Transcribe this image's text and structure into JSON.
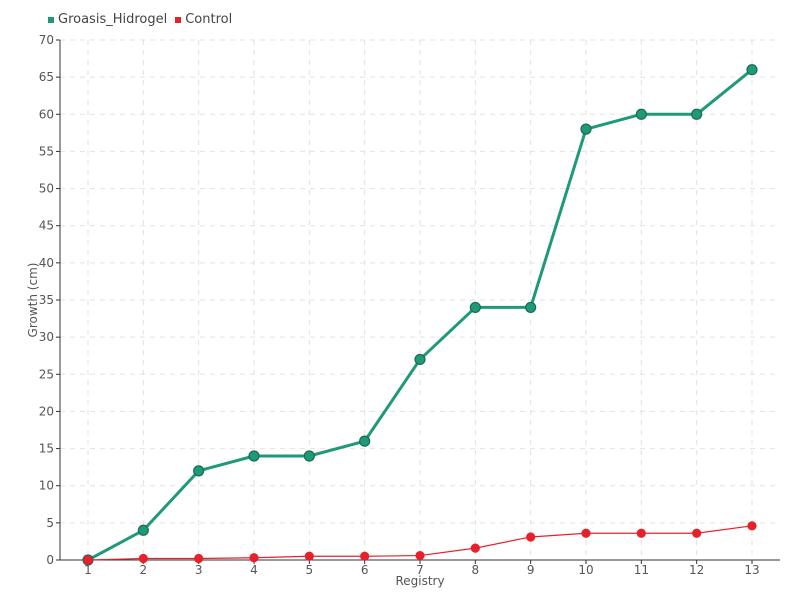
{
  "chart_data": {
    "type": "line",
    "title": "",
    "xlabel": "Registry",
    "ylabel": "Growth (cm)",
    "x": [
      1,
      2,
      3,
      4,
      5,
      6,
      7,
      8,
      9,
      10,
      11,
      12,
      13
    ],
    "xlim": [
      1,
      13
    ],
    "ylim": [
      0,
      70
    ],
    "yticks": [
      0,
      5,
      10,
      15,
      20,
      25,
      30,
      35,
      40,
      45,
      50,
      55,
      60,
      65,
      70
    ],
    "grid": true,
    "legend_position": "top-left",
    "series": [
      {
        "name": "Groasis_Hidrogel",
        "color": "#1f9a78",
        "values": [
          0,
          4,
          12,
          14,
          14,
          16,
          27,
          34,
          34,
          58,
          60,
          60,
          66
        ]
      },
      {
        "name": "Control",
        "color": "#e8202a",
        "values": [
          0,
          0.2,
          0.2,
          0.3,
          0.5,
          0.5,
          0.6,
          1.6,
          3.1,
          3.6,
          3.6,
          3.6,
          4.6
        ]
      }
    ]
  }
}
